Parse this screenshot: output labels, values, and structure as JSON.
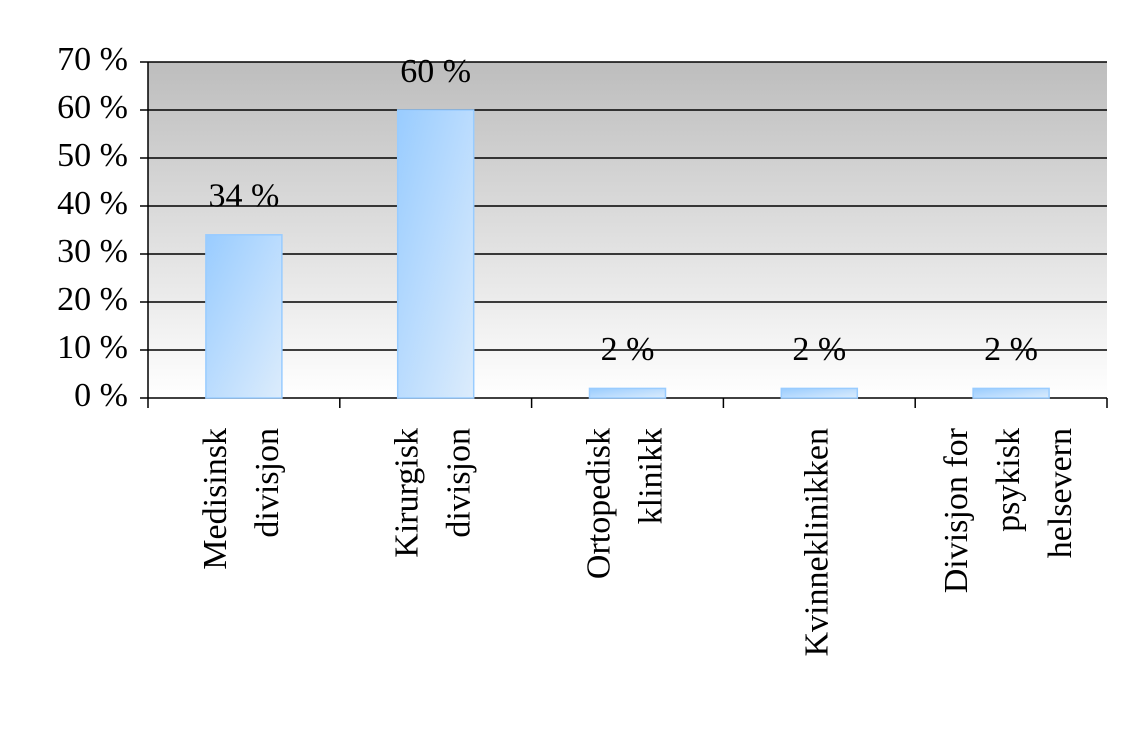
{
  "chart_data": {
    "type": "bar",
    "categories": [
      "Medisinsk divisjon",
      "Kirurgisk divisjon",
      "Ortopedisk klinikk",
      "Kvinneklinikken",
      "Divisjon for psykisk helsevern"
    ],
    "values": [
      34,
      60,
      2,
      2,
      2
    ],
    "value_labels": [
      "34 %",
      "60 %",
      "2 %",
      "2 %",
      "2 %"
    ],
    "color": "#99ccff",
    "ylim": [
      0,
      70
    ],
    "yticks": [
      {
        "value": 0,
        "label": "0 %"
      },
      {
        "value": 10,
        "label": "10 %"
      },
      {
        "value": 20,
        "label": "20 %"
      },
      {
        "value": 30,
        "label": "30 %"
      },
      {
        "value": 40,
        "label": "40 %"
      },
      {
        "value": 50,
        "label": "50 %"
      },
      {
        "value": 60,
        "label": "60 %"
      },
      {
        "value": 70,
        "label": "70 %"
      }
    ],
    "grid": true
  }
}
